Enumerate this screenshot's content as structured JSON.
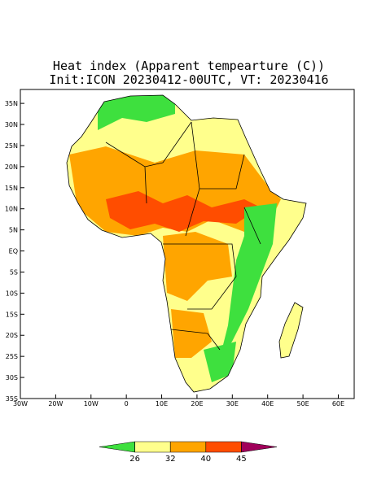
{
  "chart_data": {
    "type": "map",
    "title": "Heat index (Apparent tempearture (C))",
    "subtitle": "Init:ICON 20230412-00UTC, VT: 20230416",
    "xlim": [
      -30,
      64.5
    ],
    "ylim": [
      -35,
      38.3
    ],
    "xticks": [
      {
        "value": -30,
        "label": "30W"
      },
      {
        "value": -20,
        "label": "20W"
      },
      {
        "value": -10,
        "label": "10W"
      },
      0,
      {
        "value": 10,
        "label": "10E"
      },
      {
        "value": 20,
        "label": "20E"
      },
      {
        "value": 30,
        "label": "30E"
      },
      {
        "value": 40,
        "label": "40E"
      },
      {
        "value": 50,
        "label": "50E"
      },
      {
        "value": 60,
        "label": "60E"
      }
    ],
    "yticks": [
      {
        "value": 35,
        "label": "35N"
      },
      {
        "value": 30,
        "label": "30N"
      },
      {
        "value": 25,
        "label": "25N"
      },
      {
        "value": 20,
        "label": "20N"
      },
      {
        "value": 15,
        "label": "15N"
      },
      {
        "value": 10,
        "label": "10N"
      },
      {
        "value": 5,
        "label": "5N"
      },
      {
        "value": 0,
        "label": "EQ"
      },
      {
        "value": -5,
        "label": "5S"
      },
      {
        "value": -10,
        "label": "10S"
      },
      {
        "value": -15,
        "label": "15S"
      },
      {
        "value": -20,
        "label": "20S"
      },
      {
        "value": -25,
        "label": "25S"
      },
      {
        "value": -30,
        "label": "30S"
      },
      {
        "value": -35,
        "label": "35S"
      }
    ],
    "colorbar": {
      "levels": [
        26,
        32,
        40,
        45
      ],
      "colors": [
        "#3ee03e",
        "#ffff8c",
        "#ffa500",
        "#ff4d00",
        "#a0005a"
      ]
    }
  }
}
